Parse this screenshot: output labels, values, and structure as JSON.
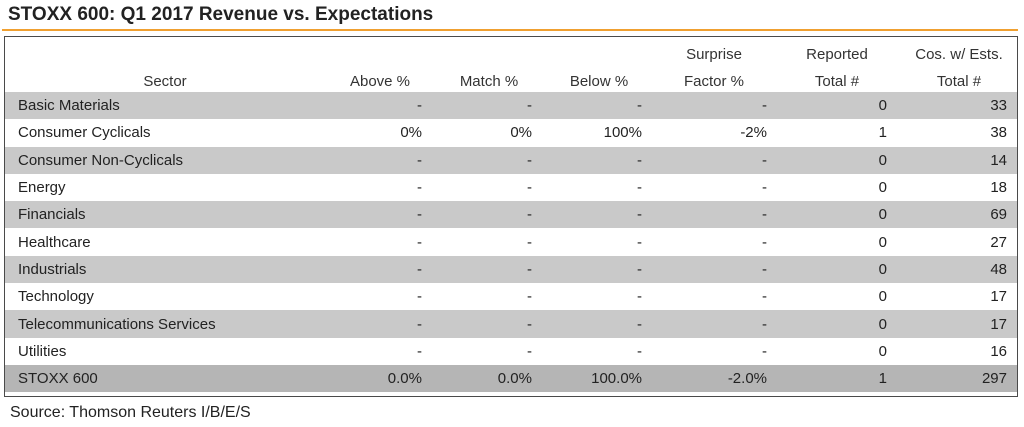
{
  "title": "STOXX 600: Q1 2017 Revenue vs. Expectations",
  "source": "Source: Thomson Reuters I/B/E/S",
  "colors": {
    "accent_rule": "#f0a030",
    "shade": "#c9c9c9",
    "total_shade": "#b5b5b5"
  },
  "chart_data": {
    "type": "table",
    "title": "STOXX 600: Q1 2017 Revenue vs. Expectations",
    "columns": [
      {
        "line1": "",
        "line2": "Sector"
      },
      {
        "line1": "",
        "line2": "Above %"
      },
      {
        "line1": "",
        "line2": "Match %"
      },
      {
        "line1": "",
        "line2": "Below %"
      },
      {
        "line1": "Surprise",
        "line2": "Factor %"
      },
      {
        "line1": "Reported",
        "line2": "Total #"
      },
      {
        "line1": "Cos. w/ Ests.",
        "line2": "Total #"
      }
    ],
    "rows": [
      [
        "Basic Materials",
        "-",
        "-",
        "-",
        "-",
        "0",
        "33"
      ],
      [
        "Consumer Cyclicals",
        "0%",
        "0%",
        "100%",
        "-2%",
        "1",
        "38"
      ],
      [
        "Consumer Non-Cyclicals",
        "-",
        "-",
        "-",
        "-",
        "0",
        "14"
      ],
      [
        "Energy",
        "-",
        "-",
        "-",
        "-",
        "0",
        "18"
      ],
      [
        "Financials",
        "-",
        "-",
        "-",
        "-",
        "0",
        "69"
      ],
      [
        "Healthcare",
        "-",
        "-",
        "-",
        "-",
        "0",
        "27"
      ],
      [
        "Industrials",
        "-",
        "-",
        "-",
        "-",
        "0",
        "48"
      ],
      [
        "Technology",
        "-",
        "-",
        "-",
        "-",
        "0",
        "17"
      ],
      [
        "Telecommunications Services",
        "-",
        "-",
        "-",
        "-",
        "0",
        "17"
      ],
      [
        "Utilities",
        "-",
        "-",
        "-",
        "-",
        "0",
        "16"
      ]
    ],
    "total_row": [
      "STOXX 600",
      "0.0%",
      "0.0%",
      "100.0%",
      "-2.0%",
      "1",
      "297"
    ]
  }
}
